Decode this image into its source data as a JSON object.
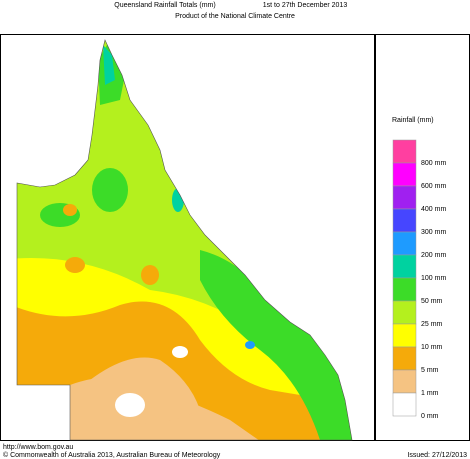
{
  "header": {
    "title": "Queensland Rainfall Totals (mm)",
    "period": "1st to 27th December 2013",
    "subtitle": "Product of the National Climate Centre"
  },
  "legend": {
    "title": "Rainfall (mm)",
    "items": [
      {
        "label": "800 mm",
        "color": "#ff3fa0"
      },
      {
        "label": "600 mm",
        "color": "#ff00ff"
      },
      {
        "label": "400 mm",
        "color": "#a020f0"
      },
      {
        "label": "300 mm",
        "color": "#4646ff"
      },
      {
        "label": "200 mm",
        "color": "#1e9bff"
      },
      {
        "label": "100 mm",
        "color": "#00d2a0"
      },
      {
        "label": "50 mm",
        "color": "#3cdc28"
      },
      {
        "label": "25 mm",
        "color": "#b4f01e"
      },
      {
        "label": "10 mm",
        "color": "#ffff00"
      },
      {
        "label": "5 mm",
        "color": "#f5aa0a"
      },
      {
        "label": "1 mm",
        "color": "#f5c382"
      },
      {
        "label": "0 mm",
        "color": "#ffffff"
      }
    ]
  },
  "footer": {
    "url": "http://www.bom.gov.au",
    "copyright": "© Commonwealth of Australia 2013, Australian Bureau of Meteorology",
    "issued": "Issued: 27/12/2013"
  }
}
